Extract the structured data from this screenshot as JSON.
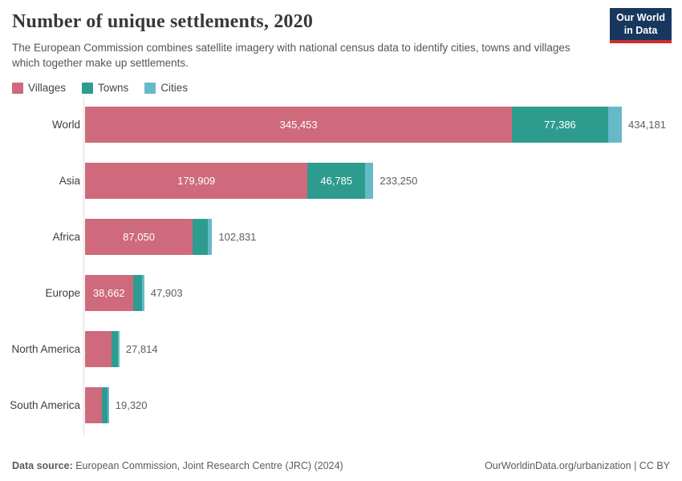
{
  "header": {
    "title": "Number of unique settlements, 2020",
    "subtitle": "The European Commission combines satellite imagery with national census data to identify cities, towns and villages which together make up settlements."
  },
  "logo": {
    "line1": "Our World",
    "line2": "in Data"
  },
  "chart_data": {
    "type": "bar",
    "orientation": "horizontal",
    "stacked": true,
    "title": "Number of unique settlements, 2020",
    "categories": [
      "World",
      "Asia",
      "Africa",
      "Europe",
      "North America",
      "South America"
    ],
    "series": [
      {
        "name": "Villages",
        "color": "#ce6a7c",
        "values": [
          345453,
          179909,
          87050,
          38662,
          21500,
          13900
        ],
        "value_labels": [
          "345,453",
          "179,909",
          "87,050",
          "38,662",
          null,
          null
        ]
      },
      {
        "name": "Towns",
        "color": "#2d9c8f",
        "values": [
          77386,
          46785,
          12000,
          7400,
          4900,
          4300
        ],
        "value_labels": [
          "77,386",
          "46,785",
          null,
          null,
          null,
          null
        ]
      },
      {
        "name": "Cities",
        "color": "#66bac8",
        "values": [
          11342,
          6556,
          3781,
          1841,
          1414,
          1120
        ],
        "value_labels": [
          null,
          null,
          null,
          null,
          null,
          null
        ]
      }
    ],
    "totals": [
      434181,
      233250,
      102831,
      47903,
      27814,
      19320
    ],
    "total_labels": [
      "434,181",
      "233,250",
      "102,831",
      "47,903",
      "27,814",
      "19,320"
    ],
    "xlim": [
      0,
      434181
    ],
    "grid": false,
    "legend_position": "top-left"
  },
  "footer": {
    "datasource_label": "Data source:",
    "datasource_text": "European Commission, Joint Research Centre (JRC) (2024)",
    "link": "OurWorldinData.org/urbanization",
    "license_suffix": " | CC BY"
  }
}
